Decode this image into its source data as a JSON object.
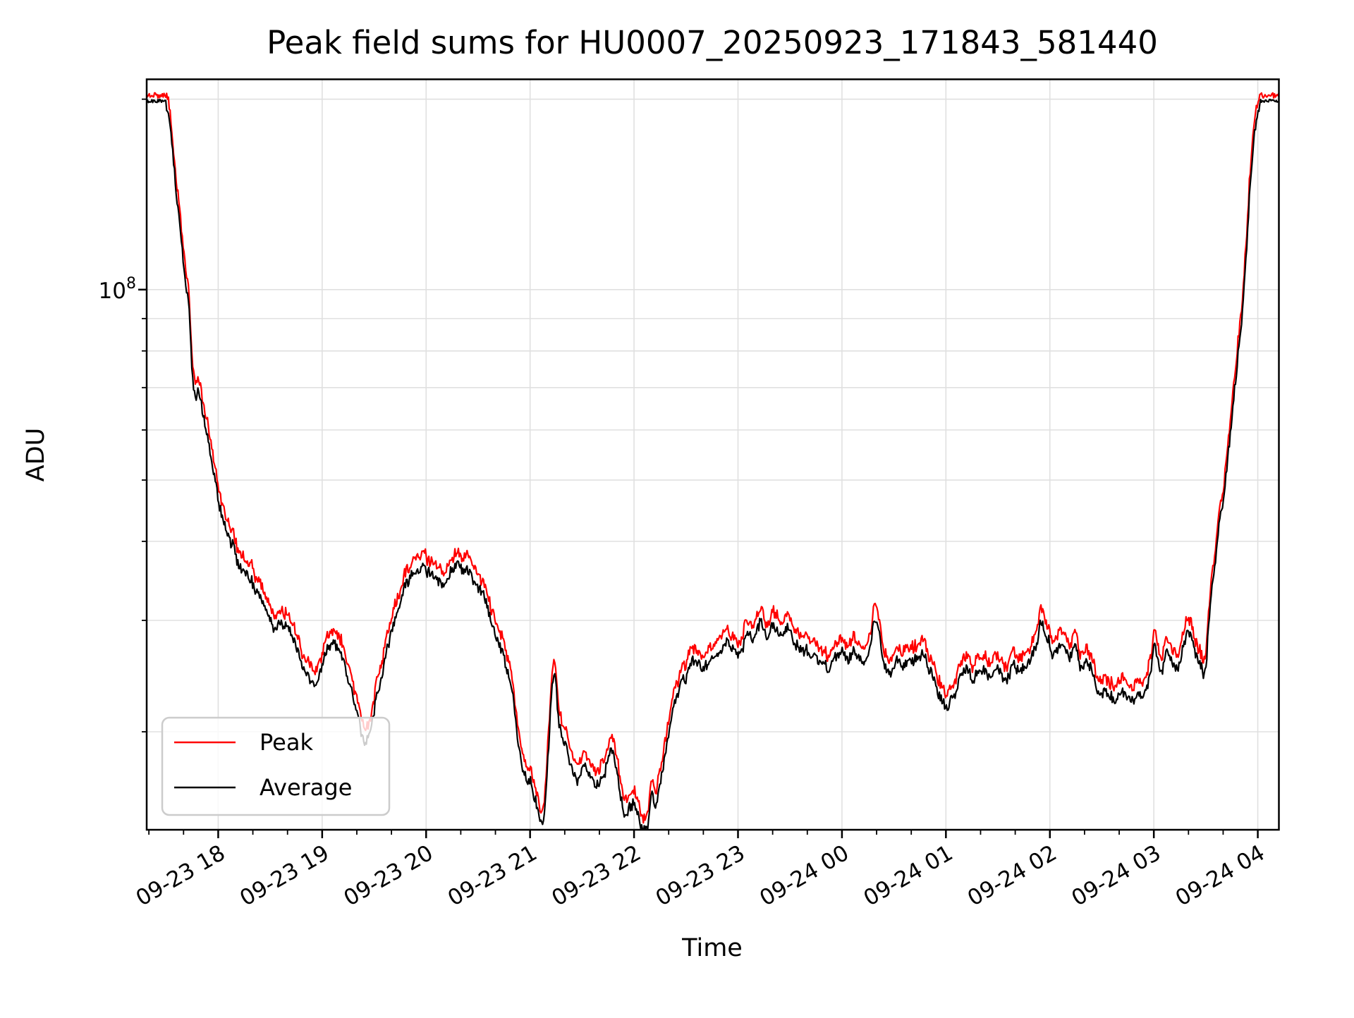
{
  "figure": {
    "background": "#ffffff"
  },
  "chart_data": {
    "type": "line",
    "title": "Peak field sums for HU0007_20250923_171843_581440",
    "xlabel": "Time",
    "ylabel": "ADU",
    "legend": [
      {
        "label": "Peak",
        "color": "#ff0000"
      },
      {
        "label": "Average",
        "color": "#000000"
      }
    ],
    "legend_position": "lower left",
    "grid": true,
    "y_axis": {
      "scale": "log",
      "major_label_base": "10",
      "major_label_exp": "8",
      "major_tick_value": 100000000.0,
      "minor_tick_values": [
        20000000.0,
        30000000.0,
        40000000.0,
        50000000.0,
        60000000.0,
        70000000.0,
        80000000.0,
        90000000.0,
        200000000.0
      ],
      "ylim": [
        14000000.0,
        215000000.0
      ]
    },
    "x_axis": {
      "tick_labels": [
        "09-23 18",
        "09-23 19",
        "09-23 20",
        "09-23 21",
        "09-23 22",
        "09-23 23",
        "09-24 00",
        "09-24 01",
        "09-24 02",
        "09-24 03",
        "09-24 04"
      ],
      "tick_hours": [
        18,
        19,
        20,
        21,
        22,
        23,
        24,
        25,
        26,
        27,
        28
      ],
      "minor_tick_interval_hours": 0.33333,
      "xlim_hours": [
        17.312,
        28.203
      ],
      "label_rotation_deg": 30
    },
    "saturation_value": 200000000.0,
    "series": [
      {
        "name": "Peak",
        "color": "#ff0000",
        "derived": "average_base * (1.035 + noise)"
      },
      {
        "name": "Average",
        "color": "#000000",
        "anchors_units": "hours_since_0923_0000, value_x1e7",
        "anchors": [
          [
            17.312,
            20
          ],
          [
            17.49,
            20
          ],
          [
            17.53,
            18.5
          ],
          [
            17.58,
            15.5
          ],
          [
            17.63,
            12.6
          ],
          [
            17.68,
            10.6
          ],
          [
            17.72,
            9.4
          ],
          [
            17.75,
            7.6
          ],
          [
            17.78,
            6.8
          ],
          [
            17.815,
            6.85
          ],
          [
            17.87,
            6.2
          ],
          [
            17.93,
            5.5
          ],
          [
            18.0,
            4.7
          ],
          [
            18.07,
            4.25
          ],
          [
            18.15,
            3.9
          ],
          [
            18.23,
            3.65
          ],
          [
            18.32,
            3.5
          ],
          [
            18.4,
            3.3
          ],
          [
            18.48,
            3.1
          ],
          [
            18.55,
            2.92
          ],
          [
            18.62,
            3.0
          ],
          [
            18.7,
            2.88
          ],
          [
            18.78,
            2.65
          ],
          [
            18.85,
            2.5
          ],
          [
            18.92,
            2.4
          ],
          [
            18.98,
            2.5
          ],
          [
            19.05,
            2.7
          ],
          [
            19.12,
            2.78
          ],
          [
            19.18,
            2.65
          ],
          [
            19.25,
            2.45
          ],
          [
            19.32,
            2.2
          ],
          [
            19.4,
            1.95
          ],
          [
            19.47,
            2.05
          ],
          [
            19.53,
            2.3
          ],
          [
            19.6,
            2.6
          ],
          [
            19.68,
            2.95
          ],
          [
            19.75,
            3.25
          ],
          [
            19.83,
            3.5
          ],
          [
            19.92,
            3.62
          ],
          [
            20.0,
            3.65
          ],
          [
            20.08,
            3.52
          ],
          [
            20.15,
            3.42
          ],
          [
            20.22,
            3.56
          ],
          [
            20.3,
            3.67
          ],
          [
            20.38,
            3.62
          ],
          [
            20.45,
            3.52
          ],
          [
            20.52,
            3.38
          ],
          [
            20.58,
            3.2
          ],
          [
            20.65,
            2.95
          ],
          [
            20.72,
            2.72
          ],
          [
            20.78,
            2.55
          ],
          [
            20.83,
            2.35
          ],
          [
            20.88,
            1.95
          ],
          [
            20.93,
            1.76
          ],
          [
            20.98,
            1.7
          ],
          [
            21.03,
            1.62
          ],
          [
            21.1,
            1.46
          ],
          [
            21.15,
            1.58
          ],
          [
            21.2,
            2.2
          ],
          [
            21.235,
            2.52
          ],
          [
            21.27,
            2.15
          ],
          [
            21.32,
            1.95
          ],
          [
            21.37,
            1.85
          ],
          [
            21.42,
            1.74
          ],
          [
            21.47,
            1.7
          ],
          [
            21.53,
            1.78
          ],
          [
            21.58,
            1.72
          ],
          [
            21.63,
            1.66
          ],
          [
            21.7,
            1.72
          ],
          [
            21.78,
            1.88
          ],
          [
            21.83,
            1.76
          ],
          [
            21.88,
            1.58
          ],
          [
            21.93,
            1.5
          ],
          [
            22.0,
            1.56
          ],
          [
            22.04,
            1.48
          ],
          [
            22.09,
            1.4
          ],
          [
            22.13,
            1.42
          ],
          [
            22.17,
            1.62
          ],
          [
            22.21,
            1.56
          ],
          [
            22.28,
            1.75
          ],
          [
            22.33,
            2.0
          ],
          [
            22.42,
            2.3
          ],
          [
            22.5,
            2.48
          ],
          [
            22.58,
            2.6
          ],
          [
            22.67,
            2.55
          ],
          [
            22.75,
            2.62
          ],
          [
            22.83,
            2.7
          ],
          [
            22.92,
            2.78
          ],
          [
            23.02,
            2.65
          ],
          [
            23.1,
            2.92
          ],
          [
            23.15,
            2.8
          ],
          [
            23.22,
            3.0
          ],
          [
            23.28,
            2.85
          ],
          [
            23.35,
            2.95
          ],
          [
            23.42,
            2.88
          ],
          [
            23.48,
            2.92
          ],
          [
            23.55,
            2.78
          ],
          [
            23.63,
            2.7
          ],
          [
            23.72,
            2.68
          ],
          [
            23.8,
            2.58
          ],
          [
            23.88,
            2.55
          ],
          [
            23.95,
            2.65
          ],
          [
            24.0,
            2.72
          ],
          [
            24.07,
            2.62
          ],
          [
            24.13,
            2.72
          ],
          [
            24.2,
            2.58
          ],
          [
            24.26,
            2.65
          ],
          [
            24.32,
            3.05
          ],
          [
            24.4,
            2.6
          ],
          [
            24.45,
            2.5
          ],
          [
            24.52,
            2.62
          ],
          [
            24.58,
            2.55
          ],
          [
            24.65,
            2.62
          ],
          [
            24.72,
            2.6
          ],
          [
            24.78,
            2.68
          ],
          [
            24.83,
            2.55
          ],
          [
            24.9,
            2.38
          ],
          [
            24.97,
            2.25
          ],
          [
            25.02,
            2.2
          ],
          [
            25.08,
            2.3
          ],
          [
            25.13,
            2.45
          ],
          [
            25.2,
            2.52
          ],
          [
            25.28,
            2.45
          ],
          [
            25.35,
            2.52
          ],
          [
            25.42,
            2.48
          ],
          [
            25.5,
            2.52
          ],
          [
            25.58,
            2.45
          ],
          [
            25.65,
            2.55
          ],
          [
            25.72,
            2.52
          ],
          [
            25.8,
            2.58
          ],
          [
            25.87,
            2.78
          ],
          [
            25.92,
            3.0
          ],
          [
            25.98,
            2.82
          ],
          [
            26.05,
            2.68
          ],
          [
            26.12,
            2.8
          ],
          [
            26.18,
            2.65
          ],
          [
            26.25,
            2.72
          ],
          [
            26.3,
            2.55
          ],
          [
            26.35,
            2.62
          ],
          [
            26.42,
            2.45
          ],
          [
            26.48,
            2.35
          ],
          [
            26.55,
            2.3
          ],
          [
            26.62,
            2.28
          ],
          [
            26.7,
            2.32
          ],
          [
            26.78,
            2.26
          ],
          [
            26.85,
            2.3
          ],
          [
            26.92,
            2.35
          ],
          [
            26.97,
            2.52
          ],
          [
            27.0,
            2.7
          ],
          [
            27.04,
            2.62
          ],
          [
            27.08,
            2.55
          ],
          [
            27.12,
            2.72
          ],
          [
            27.17,
            2.6
          ],
          [
            27.22,
            2.55
          ],
          [
            27.28,
            2.72
          ],
          [
            27.33,
            2.9
          ],
          [
            27.38,
            2.75
          ],
          [
            27.45,
            2.55
          ],
          [
            27.49,
            2.5
          ],
          [
            27.55,
            3.3
          ],
          [
            27.62,
            4.1
          ],
          [
            27.68,
            4.9
          ],
          [
            27.75,
            6.3
          ],
          [
            27.82,
            8.2
          ],
          [
            27.88,
            10.8
          ],
          [
            27.93,
            15.0
          ],
          [
            27.98,
            18.2
          ],
          [
            28.03,
            20.0
          ],
          [
            28.21,
            20.0
          ]
        ]
      }
    ]
  },
  "colors": {
    "peak": "#ff0000",
    "average": "#000000",
    "grid": "#e0e0e0",
    "spine": "#000000",
    "legend_edge": "#cccccc",
    "background": "#ffffff"
  }
}
